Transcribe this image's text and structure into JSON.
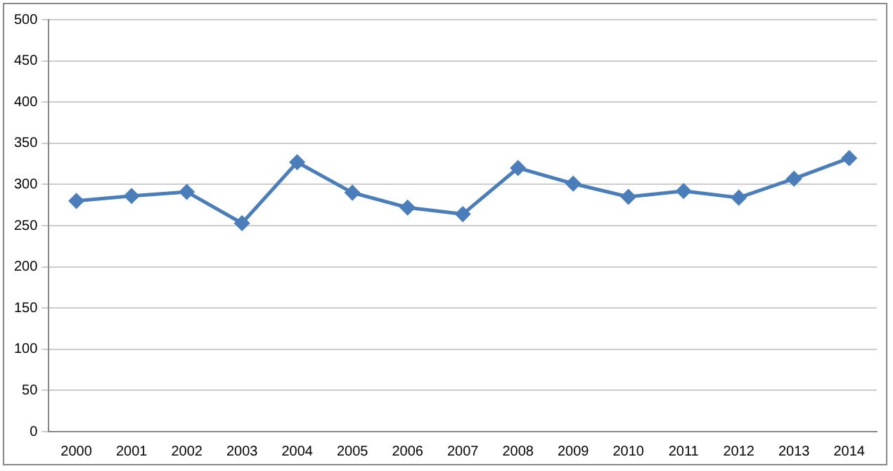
{
  "chart_data": {
    "type": "line",
    "categories": [
      "2000",
      "2001",
      "2002",
      "2003",
      "2004",
      "2005",
      "2006",
      "2007",
      "2008",
      "2009",
      "2010",
      "2011",
      "2012",
      "2013",
      "2014"
    ],
    "series": [
      {
        "color": "#4a7ebb",
        "values": [
          280,
          286,
          291,
          253,
          327,
          290,
          272,
          264,
          320,
          301,
          285,
          292,
          284,
          307,
          332
        ]
      }
    ],
    "ylim": [
      0,
      500
    ],
    "yticks": [
      0,
      50,
      100,
      150,
      200,
      250,
      300,
      350,
      400,
      450,
      500
    ],
    "grid": "y",
    "legend": false,
    "marker": "diamond",
    "line_style": "solid"
  }
}
